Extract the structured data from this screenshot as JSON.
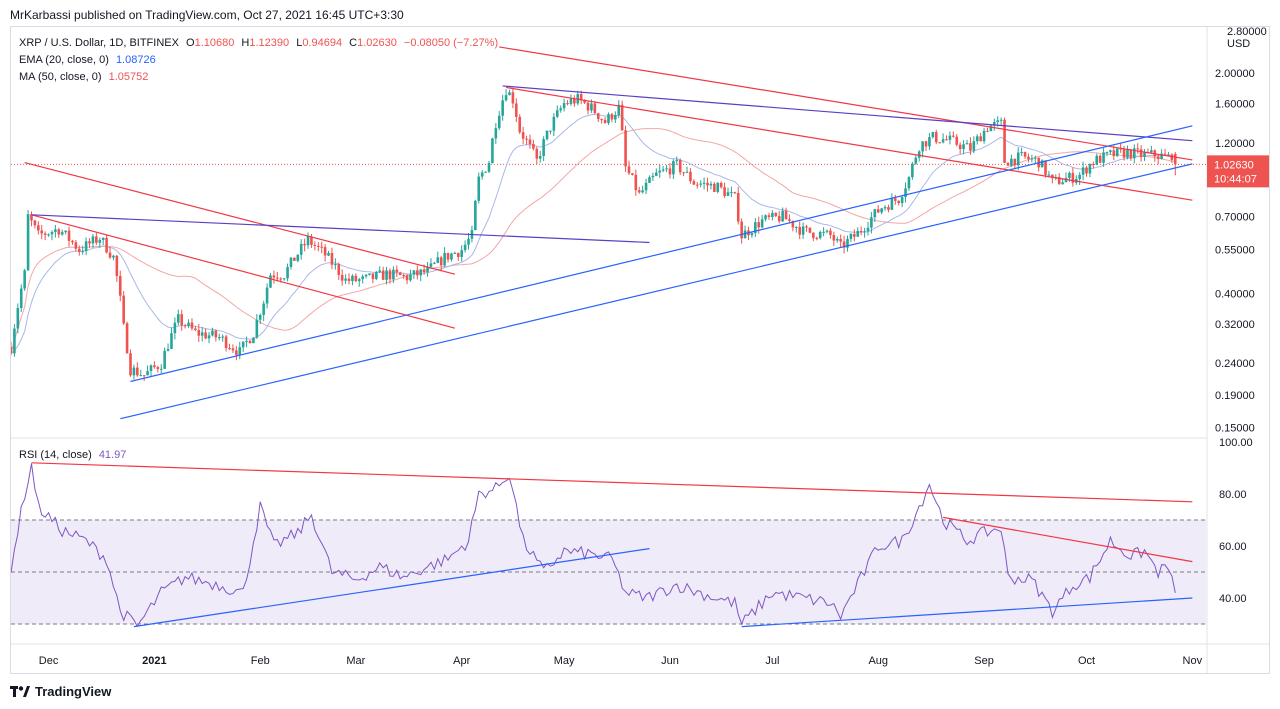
{
  "header": "MrKarbassi published on TradingView.com, Oct 27, 2021 16:45 UTC+3:30",
  "footer_brand": "TradingView",
  "legend": {
    "symbol": "XRP / U.S. Dollar, 1D, BITFINEX",
    "o_label": "O",
    "o_value": "1.10680",
    "h_label": "H",
    "h_value": "1.12390",
    "l_label": "L",
    "l_value": "0.94694",
    "c_label": "C",
    "c_value": "1.02630",
    "change": "−0.08050 (−7.27%)",
    "ema_label": "EMA (20, close, 0)",
    "ema_value": "1.08726",
    "ma_label": "MA (50, close, 0)",
    "ma_value": "1.05752",
    "rsi_label": "RSI (14, close)",
    "rsi_value": "41.97"
  },
  "price_axis": {
    "currency": "USD",
    "top_label": "2.80000",
    "ticks": [
      "2.00000",
      "1.60000",
      "1.20000",
      "0.70000",
      "0.55000",
      "0.40000",
      "0.32000",
      "0.24000",
      "0.19000",
      "0.15000"
    ],
    "current_price": "1.02630",
    "countdown": "10:44:07"
  },
  "rsi_axis": {
    "ticks": [
      "100.00",
      "80.00",
      "60.00",
      "40.00"
    ],
    "band_upper": 70,
    "band_lower": 30,
    "mid": 50
  },
  "time_axis": [
    "Dec",
    "2021",
    "Feb",
    "Mar",
    "Apr",
    "May",
    "Jun",
    "Jul",
    "Aug",
    "Sep",
    "Oct",
    "Nov"
  ],
  "colors": {
    "up": "#26a69a",
    "down": "#ef5350",
    "ema": "#4a7bd6",
    "ma": "#f4a7a6",
    "rsi": "#7e57c2",
    "blue_line": "#2962ff",
    "red_line": "#f23645",
    "purple_line": "#5b3fc4"
  },
  "chart_data": {
    "type": "candlestick",
    "title": "XRP / U.S. Dollar, 1D, BITFINEX",
    "scale": "log",
    "y_range": [
      0.14,
      2.8
    ],
    "x_range": [
      "2020-11-20",
      "2021-11-05"
    ],
    "anchors": [
      [
        "2020-11-20",
        0.27
      ],
      [
        "2020-11-24",
        0.46
      ],
      [
        "2020-11-25",
        0.7
      ],
      [
        "2020-11-28",
        0.61
      ],
      [
        "2020-12-04",
        0.64
      ],
      [
        "2020-12-10",
        0.55
      ],
      [
        "2020-12-16",
        0.6
      ],
      [
        "2020-12-20",
        0.52
      ],
      [
        "2020-12-23",
        0.31
      ],
      [
        "2020-12-25",
        0.23
      ],
      [
        "2020-12-29",
        0.22
      ],
      [
        "2021-01-03",
        0.24
      ],
      [
        "2021-01-08",
        0.33
      ],
      [
        "2021-01-13",
        0.3
      ],
      [
        "2021-01-20",
        0.29
      ],
      [
        "2021-01-26",
        0.26
      ],
      [
        "2021-01-30",
        0.3
      ],
      [
        "2021-02-02",
        0.38
      ],
      [
        "2021-02-04",
        0.46
      ],
      [
        "2021-02-08",
        0.46
      ],
      [
        "2021-02-15",
        0.59
      ],
      [
        "2021-02-20",
        0.53
      ],
      [
        "2021-02-26",
        0.44
      ],
      [
        "2021-03-03",
        0.44
      ],
      [
        "2021-03-10",
        0.46
      ],
      [
        "2021-03-16",
        0.45
      ],
      [
        "2021-03-22",
        0.47
      ],
      [
        "2021-03-27",
        0.52
      ],
      [
        "2021-04-01",
        0.55
      ],
      [
        "2021-04-04",
        0.61
      ],
      [
        "2021-04-06",
        0.92
      ],
      [
        "2021-04-09",
        1.05
      ],
      [
        "2021-04-11",
        1.4
      ],
      [
        "2021-04-14",
        1.78
      ],
      [
        "2021-04-16",
        1.65
      ],
      [
        "2021-04-18",
        1.32
      ],
      [
        "2021-04-23",
        1.05
      ],
      [
        "2021-04-27",
        1.35
      ],
      [
        "2021-05-01",
        1.6
      ],
      [
        "2021-05-05",
        1.65
      ],
      [
        "2021-05-09",
        1.55
      ],
      [
        "2021-05-13",
        1.4
      ],
      [
        "2021-05-17",
        1.55
      ],
      [
        "2021-05-19",
        1.0
      ],
      [
        "2021-05-23",
        0.82
      ],
      [
        "2021-05-28",
        0.95
      ],
      [
        "2021-06-03",
        1.02
      ],
      [
        "2021-06-08",
        0.9
      ],
      [
        "2021-06-15",
        0.87
      ],
      [
        "2021-06-20",
        0.8
      ],
      [
        "2021-06-22",
        0.61
      ],
      [
        "2021-06-28",
        0.68
      ],
      [
        "2021-07-04",
        0.7
      ],
      [
        "2021-07-10",
        0.63
      ],
      [
        "2021-07-18",
        0.61
      ],
      [
        "2021-07-21",
        0.56
      ],
      [
        "2021-07-26",
        0.62
      ],
      [
        "2021-08-02",
        0.75
      ],
      [
        "2021-08-07",
        0.8
      ],
      [
        "2021-08-10",
        0.93
      ],
      [
        "2021-08-13",
        1.18
      ],
      [
        "2021-08-17",
        1.25
      ],
      [
        "2021-08-22",
        1.22
      ],
      [
        "2021-08-28",
        1.15
      ],
      [
        "2021-09-02",
        1.35
      ],
      [
        "2021-09-06",
        1.38
      ],
      [
        "2021-09-07",
        1.05
      ],
      [
        "2021-09-12",
        1.08
      ],
      [
        "2021-09-17",
        1.05
      ],
      [
        "2021-09-21",
        0.9
      ],
      [
        "2021-09-26",
        0.93
      ],
      [
        "2021-09-29",
        0.95
      ],
      [
        "2021-10-03",
        1.05
      ],
      [
        "2021-10-08",
        1.1
      ],
      [
        "2021-10-13",
        1.12
      ],
      [
        "2021-10-17",
        1.1
      ],
      [
        "2021-10-21",
        1.1
      ],
      [
        "2021-10-25",
        1.08
      ],
      [
        "2021-10-26",
        1.1068
      ],
      [
        "2021-10-27",
        1.0263
      ]
    ],
    "last_candle": {
      "date": "2021-10-27",
      "open": 1.1068,
      "high": 1.1239,
      "low": 0.94694,
      "close": 1.0263
    },
    "rsi_anchors": [
      [
        "2020-11-20",
        52
      ],
      [
        "2020-11-24",
        80
      ],
      [
        "2020-11-26",
        91
      ],
      [
        "2020-11-28",
        75
      ],
      [
        "2020-12-05",
        66
      ],
      [
        "2020-12-12",
        62
      ],
      [
        "2020-12-18",
        55
      ],
      [
        "2020-12-22",
        35
      ],
      [
        "2020-12-27",
        29
      ],
      [
        "2021-01-03",
        42
      ],
      [
        "2021-01-10",
        48
      ],
      [
        "2021-01-20",
        45
      ],
      [
        "2021-01-27",
        42
      ],
      [
        "2021-02-01",
        75
      ],
      [
        "2021-02-05",
        60
      ],
      [
        "2021-02-12",
        65
      ],
      [
        "2021-02-16",
        72
      ],
      [
        "2021-02-22",
        50
      ],
      [
        "2021-03-01",
        47
      ],
      [
        "2021-03-08",
        52
      ],
      [
        "2021-03-15",
        48
      ],
      [
        "2021-03-22",
        52
      ],
      [
        "2021-03-28",
        55
      ],
      [
        "2021-04-03",
        62
      ],
      [
        "2021-04-06",
        80
      ],
      [
        "2021-04-11",
        82
      ],
      [
        "2021-04-15",
        88
      ],
      [
        "2021-04-19",
        62
      ],
      [
        "2021-04-25",
        50
      ],
      [
        "2021-05-01",
        58
      ],
      [
        "2021-05-08",
        57
      ],
      [
        "2021-05-15",
        55
      ],
      [
        "2021-05-19",
        42
      ],
      [
        "2021-05-25",
        40
      ],
      [
        "2021-06-03",
        45
      ],
      [
        "2021-06-12",
        41
      ],
      [
        "2021-06-20",
        38
      ],
      [
        "2021-06-22",
        30
      ],
      [
        "2021-07-01",
        42
      ],
      [
        "2021-07-10",
        40
      ],
      [
        "2021-07-18",
        38
      ],
      [
        "2021-07-21",
        33
      ],
      [
        "2021-08-01",
        60
      ],
      [
        "2021-08-08",
        62
      ],
      [
        "2021-08-13",
        75
      ],
      [
        "2021-08-16",
        84
      ],
      [
        "2021-08-20",
        70
      ],
      [
        "2021-08-27",
        62
      ],
      [
        "2021-09-01",
        65
      ],
      [
        "2021-09-06",
        67
      ],
      [
        "2021-09-08",
        48
      ],
      [
        "2021-09-15",
        47
      ],
      [
        "2021-09-21",
        35
      ],
      [
        "2021-09-27",
        45
      ],
      [
        "2021-10-02",
        48
      ],
      [
        "2021-10-08",
        62
      ],
      [
        "2021-10-14",
        56
      ],
      [
        "2021-10-18",
        58
      ],
      [
        "2021-10-22",
        50
      ],
      [
        "2021-10-25",
        52
      ],
      [
        "2021-10-27",
        41.97
      ]
    ],
    "ema_value_last": 1.08726,
    "ma_value_last": 1.05752,
    "trendlines_price": [
      {
        "color": "red",
        "p1": [
          "2021-04-12",
          2.42
        ],
        "p2": [
          "2021-11-01",
          1.06
        ]
      },
      {
        "color": "red",
        "p1": [
          "2021-04-14",
          1.8
        ],
        "p2": [
          "2021-11-01",
          0.79
        ]
      },
      {
        "color": "red",
        "p1": [
          "2020-11-24",
          1.04
        ],
        "p2": [
          "2021-03-30",
          0.46
        ]
      },
      {
        "color": "red",
        "p1": [
          "2020-11-26",
          0.71
        ],
        "p2": [
          "2021-03-30",
          0.31
        ]
      },
      {
        "color": "purple",
        "p1": [
          "2020-11-26",
          0.71
        ],
        "p2": [
          "2021-05-26",
          0.58
        ]
      },
      {
        "color": "purple",
        "p1": [
          "2021-04-13",
          1.82
        ],
        "p2": [
          "2021-11-01",
          1.22
        ]
      },
      {
        "color": "blue",
        "p1": [
          "2020-12-25",
          0.21
        ],
        "p2": [
          "2021-11-01",
          1.36
        ]
      },
      {
        "color": "blue",
        "p1": [
          "2020-12-22",
          0.16
        ],
        "p2": [
          "2021-11-01",
          1.03
        ]
      }
    ],
    "trendlines_rsi": [
      {
        "color": "red",
        "p1": [
          "2020-11-26",
          92
        ],
        "p2": [
          "2021-11-01",
          77
        ]
      },
      {
        "color": "red",
        "p1": [
          "2021-08-20",
          71
        ],
        "p2": [
          "2021-11-01",
          54
        ]
      },
      {
        "color": "blue",
        "p1": [
          "2020-12-26",
          29
        ],
        "p2": [
          "2021-05-26",
          59
        ]
      },
      {
        "color": "blue",
        "p1": [
          "2021-06-22",
          29
        ],
        "p2": [
          "2021-11-01",
          40
        ]
      }
    ]
  }
}
